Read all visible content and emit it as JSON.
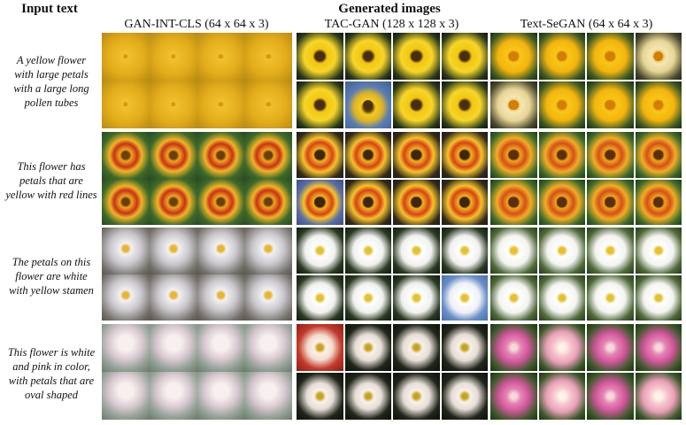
{
  "header": {
    "input_text": "Input text",
    "generated_images": "Generated images"
  },
  "methods": [
    {
      "label": "GAN-INT-CLS (64 x 64 x 3)",
      "key": "gan"
    },
    {
      "label": "TAC-GAN (128 x 128 x 3)",
      "key": "tac"
    },
    {
      "label": "Text-SeGAN (64 x 64 x 3)",
      "key": "segan"
    }
  ],
  "rows": [
    {
      "caption": [
        "A yellow flower",
        "with large petals",
        "with a large long",
        "pollen tubes"
      ]
    },
    {
      "caption": [
        "This flower has",
        "petals that are",
        "yellow with red lines"
      ]
    },
    {
      "caption": [
        "The petals on this",
        "flower are white",
        "with yellow stamen"
      ]
    },
    {
      "caption": [
        "This flower is white",
        "and pink in color,",
        "with petals that are",
        "oval shaped"
      ]
    }
  ],
  "colors": {
    "background": "#ffffff",
    "text": "#111111"
  }
}
